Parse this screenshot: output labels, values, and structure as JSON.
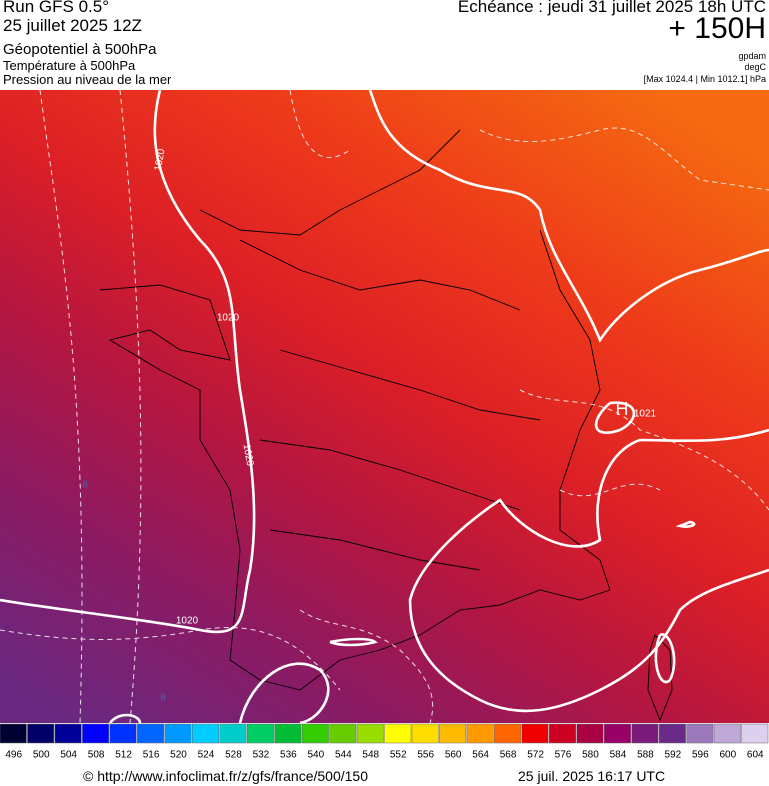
{
  "header": {
    "run": "Run GFS 0.5°",
    "date": "25 juillet 2025 12Z",
    "field1": "Géopotentiel à 500hPa",
    "field2": "Température à 500hPa",
    "field3": "Pression au niveau de la mer",
    "echeance": "Echéance : jeudi 31 juillet 2025 18h UTC",
    "lead": "+ 150H",
    "unit1": "gpdam",
    "unit2": "degC",
    "range": "[Max 1024.4 | Min 1012.1] hPa"
  },
  "map": {
    "labels": [
      "1020",
      "1020",
      "1020",
      "1020",
      "1021",
      "H",
      "8",
      "8"
    ]
  },
  "colorbar": {
    "labels": [
      496,
      500,
      504,
      508,
      512,
      516,
      520,
      524,
      528,
      532,
      536,
      540,
      544,
      548,
      552,
      556,
      560,
      564,
      568,
      572,
      576,
      580,
      584,
      588,
      592,
      596,
      600,
      604
    ]
  },
  "footer": {
    "url": "© http://www.infoclimat.fr/z/gfs/france/500/150",
    "timestamp": "25 juil. 2025 16:17 UTC"
  }
}
